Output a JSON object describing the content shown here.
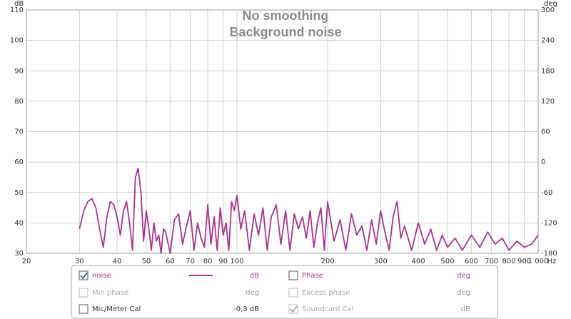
{
  "chart_data": {
    "type": "line",
    "title": "No smoothing",
    "subtitle": "Background noise",
    "y_label": "dB",
    "y2_label": "deg",
    "x_label": "Hz",
    "xscale": "log",
    "grid": true,
    "xlim": [
      20,
      1000
    ],
    "xticks": [
      20,
      30,
      40,
      50,
      60,
      70,
      80,
      90,
      100,
      200,
      300,
      400,
      500,
      600,
      700,
      800,
      900,
      {
        "value": 1000,
        "label": "1 000"
      }
    ],
    "ylim": [
      30,
      110
    ],
    "yticks": [
      30,
      40,
      50,
      60,
      70,
      80,
      90,
      100,
      110
    ],
    "y2lim": [
      -180,
      300
    ],
    "y2ticks": [
      -180,
      -120,
      -60,
      0,
      60,
      120,
      180,
      240,
      300
    ],
    "series": [
      {
        "name": "noise",
        "color": "#a8348c",
        "x": [
          30,
          31,
          32,
          33,
          34,
          35,
          36,
          37,
          38,
          39,
          40,
          41,
          42,
          43,
          44,
          45,
          46,
          47,
          48,
          49,
          50,
          51,
          52,
          53,
          54,
          55,
          56,
          57,
          58,
          60,
          62,
          64,
          66,
          68,
          70,
          72,
          74,
          76,
          78,
          80,
          82,
          84,
          86,
          88,
          90,
          92,
          94,
          96,
          98,
          100,
          103,
          106,
          110,
          114,
          118,
          122,
          126,
          130,
          135,
          140,
          145,
          150,
          155,
          160,
          165,
          170,
          175,
          180,
          185,
          190,
          195,
          200,
          210,
          220,
          230,
          240,
          250,
          260,
          270,
          280,
          290,
          300,
          310,
          320,
          330,
          340,
          350,
          360,
          380,
          400,
          420,
          440,
          460,
          480,
          500,
          530,
          560,
          600,
          640,
          680,
          720,
          760,
          800,
          850,
          900,
          950,
          1000
        ],
        "values": [
          38,
          44,
          47,
          48,
          45,
          38,
          32,
          42,
          47,
          46,
          42,
          36,
          44,
          47,
          40,
          31,
          55,
          58,
          50,
          34,
          44,
          38,
          31,
          40,
          34,
          36,
          30,
          38,
          37,
          30,
          41,
          43,
          33,
          39,
          44,
          31,
          40,
          35,
          32,
          46,
          33,
          42,
          31,
          45,
          36,
          40,
          31,
          47,
          44,
          49,
          38,
          44,
          31,
          43,
          36,
          45,
          31,
          42,
          46,
          33,
          44,
          31,
          43,
          38,
          42,
          35,
          44,
          32,
          40,
          45,
          31,
          47,
          34,
          41,
          31,
          43,
          36,
          39,
          31,
          41,
          33,
          44,
          37,
          31,
          42,
          47,
          35,
          39,
          31,
          40,
          33,
          38,
          31,
          36,
          32,
          35,
          31,
          36,
          32,
          37,
          33,
          35,
          31,
          34,
          32,
          33,
          36
        ]
      }
    ]
  },
  "trace_panel": {
    "items": [
      {
        "unit": "dB",
        "checked": true,
        "enabled": true,
        "column": 0
      },
      {
        "label": "Phase",
        "unit": "deg",
        "checked": false,
        "enabled": true,
        "column": 1,
        "color": "#a8348c"
      },
      {
        "label": "Min phase",
        "unit": "deg",
        "checked": false,
        "enabled": false,
        "column": 0
      },
      {
        "label": "Excess phase",
        "unit": "deg",
        "checked": false,
        "enabled": false,
        "column": 1
      },
      {
        "label": "Mic/Meter Cal",
        "unit": "-0,3 dB",
        "checked": false,
        "enabled": true,
        "column": 0
      },
      {
        "label": "Soundcard Cal",
        "unit": "dB",
        "checked": true,
        "enabled": false,
        "column": 1
      }
    ]
  }
}
